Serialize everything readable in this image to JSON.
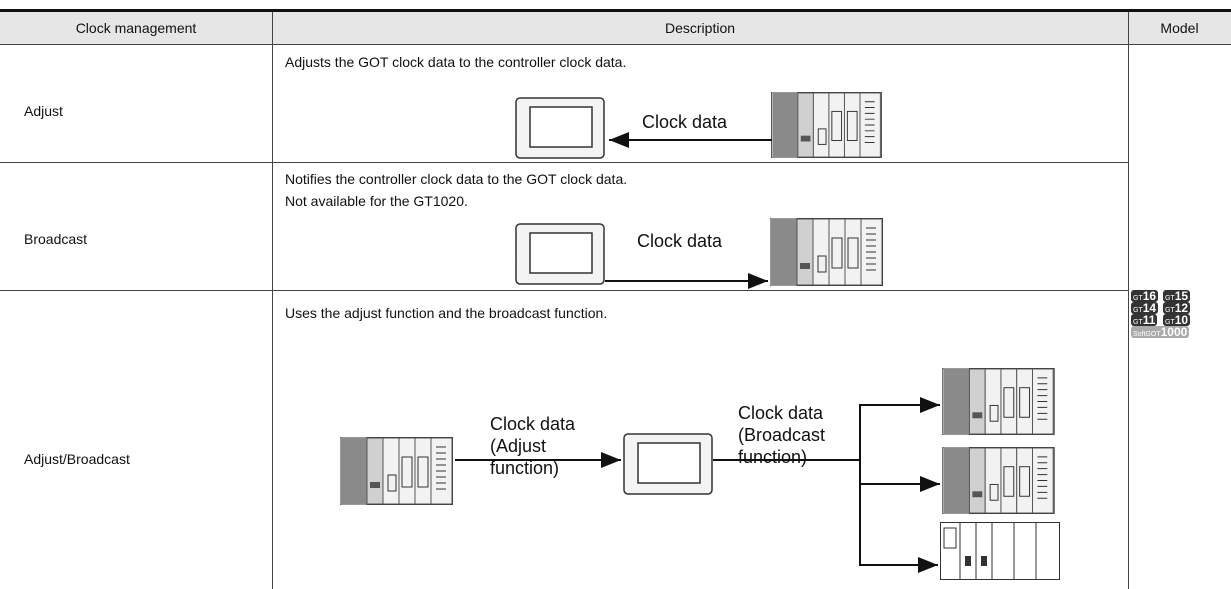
{
  "table": {
    "headers": [
      "Clock management",
      "Description",
      "Model"
    ],
    "rows": [
      {
        "name": "Adjust",
        "description": [
          "Adjusts the GOT clock data to the controller clock data."
        ],
        "diagram": [
          [
            "Clock data"
          ]
        ]
      },
      {
        "name": "Broadcast",
        "description": [
          "Notifies the controller clock data to the GOT clock data.",
          "Not available for the GT1020."
        ],
        "diagram": [
          [
            "Clock data"
          ]
        ]
      },
      {
        "name": "Adjust/Broadcast",
        "description": [
          "Uses the adjust function and the broadcast function."
        ],
        "diagram": [
          [
            "Clock data",
            "(Adjust",
            "function)"
          ],
          [
            "Clock data",
            "(Broadcast",
            "function)"
          ]
        ]
      }
    ],
    "models": [
      {
        "prefix": "GT",
        "number": "16"
      },
      {
        "prefix": "GT",
        "number": "15"
      },
      {
        "prefix": "GT",
        "number": "14"
      },
      {
        "prefix": "GT",
        "number": "12"
      },
      {
        "prefix": "GT",
        "number": "11"
      },
      {
        "prefix": "GT",
        "number": "10"
      },
      {
        "prefix": "SoftGOT",
        "number": "1000"
      }
    ]
  }
}
